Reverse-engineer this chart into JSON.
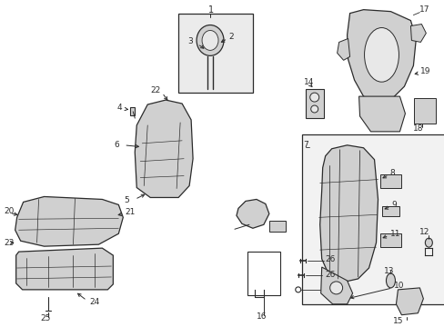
{
  "bg_color": "#ffffff",
  "line_color": "#2b2b2b",
  "gray_fill": "#d0d0d0",
  "light_gray": "#e8e8e8",
  "box_fill": "#ebebeb",
  "frame_fill": "#f2f2f2"
}
